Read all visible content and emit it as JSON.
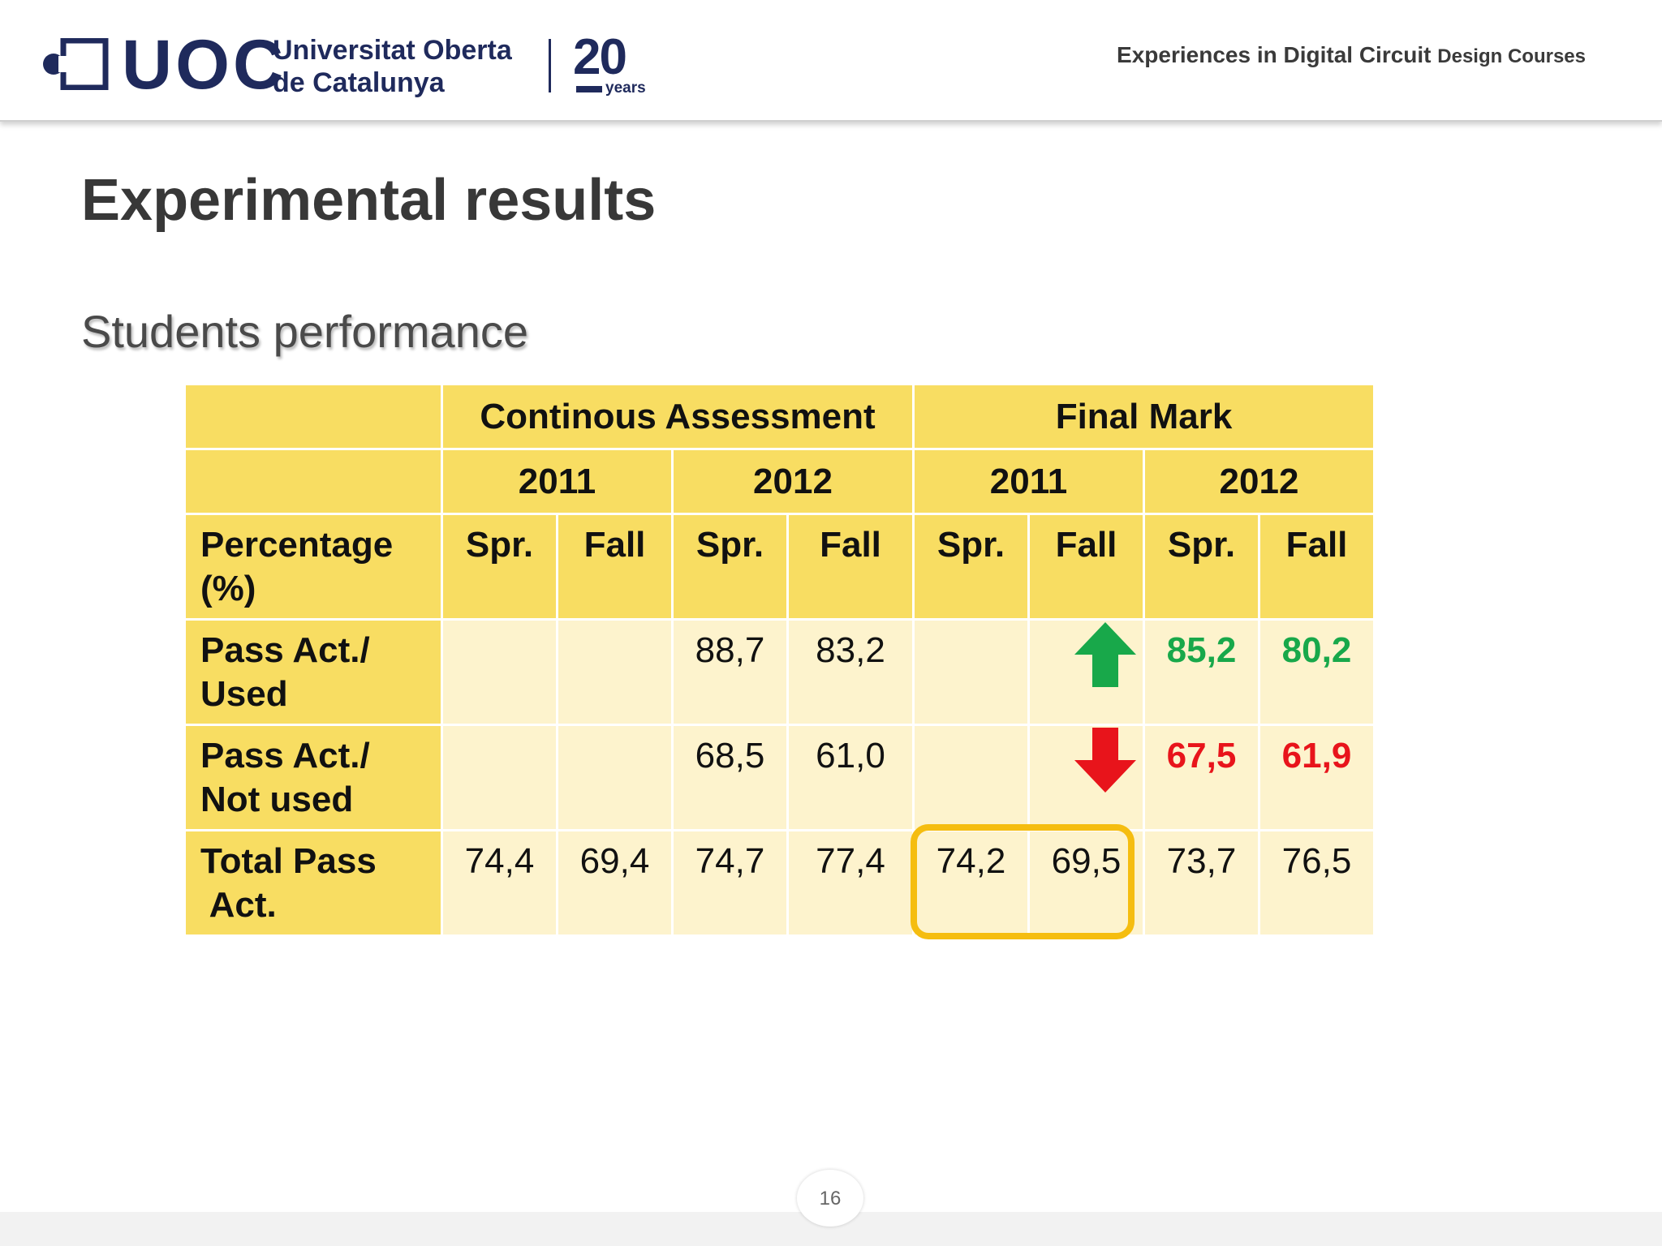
{
  "header": {
    "logo_text": "UOC",
    "university_line1": "Universitat Oberta",
    "university_line2": "de Catalunya",
    "anniversary_number": "20",
    "anniversary_word": "years",
    "course_title_main": "Experiences in Digital Circuit",
    "course_title_small": "Design Courses"
  },
  "slide": {
    "title": "Experimental results",
    "subtitle": "Students performance",
    "page_number": "16"
  },
  "table": {
    "groups": [
      "Continous Assessment",
      "Final Mark"
    ],
    "years": [
      "2011",
      "2012",
      "2011",
      "2012"
    ],
    "row_header_label_line1": "Percentage",
    "row_header_label_line2": "(%)",
    "terms": [
      "Spr.",
      "Fall",
      "Spr.",
      "Fall",
      "Spr.",
      "Fall",
      "Spr.",
      "Fall"
    ],
    "rows": [
      {
        "label_line1": "Pass Act./",
        "label_line2": "Used",
        "values": [
          "",
          "",
          "88,7",
          "83,2",
          "",
          "",
          "85,2",
          "80,2"
        ],
        "trend": "up"
      },
      {
        "label_line1": "Pass Act./",
        "label_line2": "Not used",
        "values": [
          "",
          "",
          "68,5",
          "61,0",
          "",
          "",
          "67,5",
          "61,9"
        ],
        "trend": "down"
      },
      {
        "label_line1": "Total Pass",
        "label_line2": " Act.",
        "values": [
          "74,4",
          "69,4",
          "74,7",
          "77,4",
          "74,2",
          "69,5",
          "73,7",
          "76,5"
        ],
        "trend": ""
      }
    ],
    "colors": {
      "header_yellow": "#f8dd62",
      "cell_light": "#fdf3cd",
      "up_green": "#18a84a",
      "down_red": "#e8141b",
      "highlight_orange": "#f5bd10"
    }
  }
}
